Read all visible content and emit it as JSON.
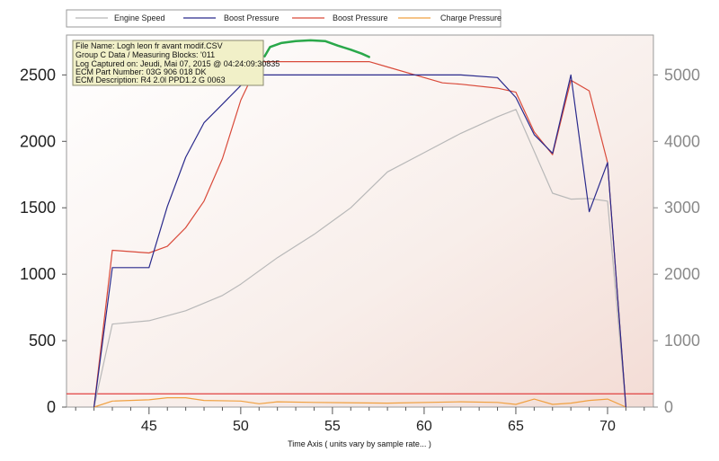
{
  "chart_data": {
    "type": "line",
    "xlabel": "Time Axis ( units vary by sample rate... )",
    "xlim": [
      40.5,
      72.5
    ],
    "x_ticks": [
      "45",
      "50",
      "55",
      "60",
      "65",
      "70"
    ],
    "ylim_left": [
      0,
      2800
    ],
    "ylim_right": [
      0,
      5600
    ],
    "y_ticks_left": [
      "0",
      "500",
      "1000",
      "1500",
      "2000",
      "2500"
    ],
    "y_ticks_right": [
      "0",
      "1000",
      "2000",
      "3000",
      "4000",
      "5000"
    ],
    "legend": [
      "Engine Speed",
      "Boost Pressure",
      "Boost Pressure",
      "Charge Pressure"
    ],
    "colors": {
      "engine_speed": "#b8b8b8",
      "boost_actual": "#2a2a8c",
      "boost_spec": "#d94a3a",
      "charge": "#f0a040",
      "limit_line": "#e04040",
      "annotation": "#2aa84a"
    },
    "reference_line_left": 100,
    "series": [
      {
        "name": "Engine Speed",
        "axis": "right",
        "x": [
          42,
          43,
          45,
          47,
          49,
          50,
          52,
          54,
          56,
          58,
          60,
          62,
          64,
          65,
          67,
          68,
          69,
          70,
          71
        ],
        "y": [
          0,
          1250,
          1300,
          1450,
          1680,
          1850,
          2250,
          2600,
          3000,
          3540,
          3830,
          4120,
          4370,
          4480,
          3220,
          3130,
          3140,
          3100,
          0
        ]
      },
      {
        "name": "Boost Pressure",
        "axis": "left",
        "x": [
          42,
          43,
          45,
          46,
          47,
          48,
          49,
          50,
          51,
          52,
          58,
          62,
          64,
          65,
          66,
          67,
          68,
          69,
          70,
          71
        ],
        "y": [
          0,
          1050,
          1050,
          1510,
          1880,
          2140,
          2280,
          2420,
          2500,
          2500,
          2500,
          2500,
          2480,
          2330,
          2050,
          1910,
          2500,
          1470,
          1840,
          0
        ]
      },
      {
        "name": "Boost Pressure",
        "axis": "left",
        "x": [
          42,
          43,
          45,
          46,
          47,
          48,
          49,
          50,
          51,
          57,
          58,
          60,
          61,
          62,
          64,
          65,
          66,
          67,
          68,
          69,
          70,
          71
        ],
        "y": [
          0,
          1180,
          1160,
          1210,
          1350,
          1550,
          1870,
          2310,
          2600,
          2600,
          2560,
          2480,
          2440,
          2430,
          2400,
          2370,
          2070,
          1900,
          2460,
          2380,
          1840,
          0
        ]
      },
      {
        "name": "Charge Pressure",
        "axis": "left",
        "x": [
          42,
          43,
          45,
          46,
          47,
          48,
          50,
          51,
          52,
          54,
          58,
          62,
          64,
          65,
          66,
          67,
          68,
          69,
          70,
          71
        ],
        "y": [
          0,
          45,
          55,
          70,
          70,
          50,
          45,
          25,
          40,
          35,
          30,
          40,
          35,
          20,
          60,
          20,
          30,
          50,
          60,
          0
        ]
      }
    ],
    "annotation_curve": {
      "x": [
        51.3,
        51.6,
        52.2,
        53,
        53.8,
        54.6,
        55.3,
        56,
        56.6,
        57
      ],
      "y": [
        2640,
        2710,
        2740,
        2755,
        2760,
        2755,
        2720,
        2690,
        2660,
        2635
      ]
    },
    "info_box": [
      "File Name: Logh leon fr avant modif.CSV",
      "Group C Data / Measuring Blocks: '011",
      "Log Captured on: Jeudi, Mai 07, 2015 @ 04:24:09:30835",
      "ECM Part Number: 03G 906 018 DK",
      "ECM Description: R4 2.0l PPD1.2 G    0063"
    ]
  }
}
